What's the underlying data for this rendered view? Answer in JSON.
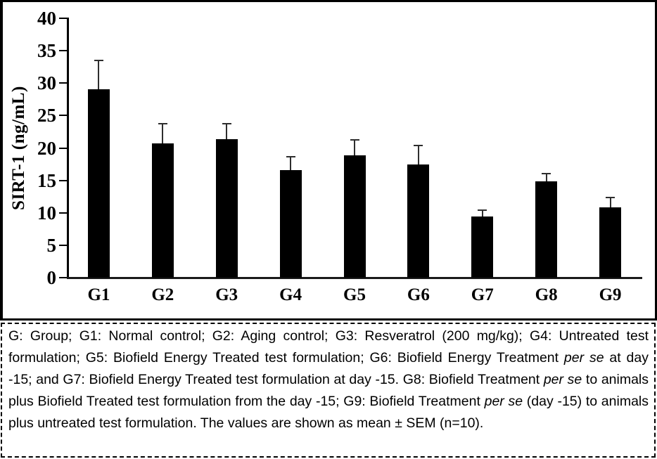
{
  "chart_data": {
    "type": "bar",
    "title": "",
    "xlabel": "",
    "ylabel": "SIRT-1 (ng/mL)",
    "categories": [
      "G1",
      "G2",
      "G3",
      "G4",
      "G5",
      "G6",
      "G7",
      "G8",
      "G9"
    ],
    "series": [
      {
        "name": "SIRT-1",
        "values": [
          29.0,
          20.7,
          21.4,
          16.6,
          18.9,
          17.4,
          9.4,
          14.9,
          10.8
        ],
        "errors_sem": [
          4.5,
          3.0,
          2.3,
          2.0,
          2.4,
          3.0,
          1.0,
          1.1,
          1.6
        ]
      }
    ],
    "yticks": [
      0,
      5,
      10,
      15,
      20,
      25,
      30,
      35,
      40
    ],
    "ylim": [
      0,
      40
    ],
    "grid": false,
    "legend_position": "none",
    "bar_color": "#000000",
    "error_bar_color": "#2e2e2e",
    "error_bars": "upper only, mean + SEM"
  },
  "caption": {
    "segments": [
      {
        "text": "G: Group; G1: Normal control; G2: Aging control; G3: Resveratrol (200 mg/kg); G4: Untreated test formulation; G5: Biofield Energy Treated test formulation; G6: Biofield Energy Treatment ",
        "italic": false
      },
      {
        "text": "per se",
        "italic": true
      },
      {
        "text": " at day -15; and G7: Biofield Energy Treated test formulation at day -15. G8: Biofield Treatment ",
        "italic": false
      },
      {
        "text": "per se",
        "italic": true
      },
      {
        "text": " to animals plus Biofield Treated test formulation from the day -15; G9: Biofield Treatment ",
        "italic": false
      },
      {
        "text": "per se",
        "italic": true
      },
      {
        "text": " (day -15) to animals plus untreated test formulation. The values are shown as mean ± SEM (n=10).",
        "italic": false
      }
    ]
  }
}
